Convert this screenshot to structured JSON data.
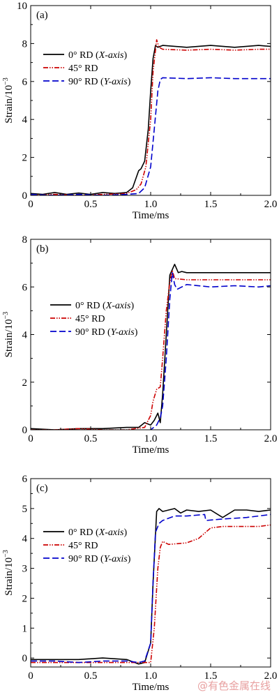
{
  "watermark": "@有色金属在线",
  "chart_data": [
    {
      "type": "line",
      "panel_label": "(a)",
      "xlabel": "Time/ms",
      "ylabel": "Strain/10",
      "ylabel_sup": "−3",
      "xlim": [
        0,
        2.0
      ],
      "ylim": [
        0,
        10
      ],
      "xticks": [
        0,
        0.5,
        1.0,
        1.5,
        2.0
      ],
      "xtick_labels": [
        "0",
        "0.5",
        "1.0",
        "1.5",
        "2.0"
      ],
      "yticks": [
        0,
        2,
        4,
        6,
        8,
        10
      ],
      "ytick_labels": [
        "0",
        "2",
        "4",
        "6",
        "8",
        "10"
      ],
      "legend_position": "upper-left",
      "series": [
        {
          "name": "0° RD (",
          "name_italic": "X-axis",
          "name_end": ")",
          "color": "#000000",
          "dash": "solid",
          "x": [
            0,
            0.1,
            0.2,
            0.3,
            0.4,
            0.5,
            0.6,
            0.7,
            0.8,
            0.85,
            0.9,
            0.92,
            0.95,
            0.98,
            1.0,
            1.02,
            1.04,
            1.06,
            1.1,
            1.3,
            1.5,
            1.7,
            1.9,
            2.0
          ],
          "y": [
            0.1,
            0.05,
            0.15,
            0.05,
            0.12,
            0.05,
            0.15,
            0.1,
            0.15,
            0.4,
            1.3,
            1.4,
            1.8,
            3.5,
            5.5,
            7.2,
            7.9,
            7.8,
            7.9,
            7.8,
            7.9,
            7.8,
            7.9,
            7.85
          ]
        },
        {
          "name": "45° RD",
          "color": "#cc0000",
          "dash": "dashdotdot",
          "x": [
            0,
            0.2,
            0.4,
            0.6,
            0.8,
            0.88,
            0.92,
            0.96,
            1.0,
            1.02,
            1.05,
            1.07,
            1.1,
            1.3,
            1.5,
            1.7,
            1.9,
            2.0
          ],
          "y": [
            0.0,
            0.05,
            0.0,
            0.05,
            0.1,
            0.3,
            0.6,
            1.5,
            4.0,
            6.5,
            8.2,
            7.8,
            7.7,
            7.65,
            7.7,
            7.65,
            7.7,
            7.7
          ],
          "legend": true
        },
        {
          "name": "90° RD (",
          "name_italic": "Y-axis",
          "name_end": ")",
          "color": "#0000cc",
          "dash": "longdash",
          "x": [
            0,
            0.2,
            0.4,
            0.6,
            0.8,
            0.9,
            0.95,
            1.0,
            1.03,
            1.06,
            1.08,
            1.1,
            1.3,
            1.5,
            1.7,
            1.9,
            2.0
          ],
          "y": [
            0.05,
            0.0,
            0.05,
            0.0,
            0.05,
            0.1,
            0.4,
            1.5,
            3.5,
            5.5,
            6.1,
            6.2,
            6.15,
            6.2,
            6.15,
            6.15,
            6.15
          ]
        }
      ]
    },
    {
      "type": "line",
      "panel_label": "(b)",
      "xlabel": "Time/ms",
      "ylabel": "Strain/10",
      "ylabel_sup": "−3",
      "xlim": [
        0,
        2.0
      ],
      "ylim": [
        0,
        8
      ],
      "xticks": [
        0,
        0.5,
        1.0,
        1.5,
        2.0
      ],
      "xtick_labels": [
        "0",
        "0.5",
        "1.0",
        "1.5",
        "2.0"
      ],
      "yticks": [
        0,
        2,
        4,
        6,
        8
      ],
      "ytick_labels": [
        "0",
        "2",
        "4",
        "6",
        "8"
      ],
      "legend_position": "middle-left",
      "series": [
        {
          "name": "0° RD (",
          "name_italic": "X-axis",
          "name_end": ")",
          "color": "#000000",
          "dash": "solid",
          "x": [
            0,
            0.2,
            0.4,
            0.6,
            0.8,
            0.9,
            0.95,
            1.0,
            1.03,
            1.06,
            1.08,
            1.1,
            1.13,
            1.16,
            1.2,
            1.23,
            1.26,
            1.3,
            1.5,
            1.7,
            1.9,
            2.0
          ],
          "y": [
            0.05,
            0.0,
            0.05,
            0.05,
            0.1,
            0.1,
            0.3,
            0.2,
            0.4,
            0.7,
            0.3,
            1.5,
            4.0,
            6.5,
            6.95,
            6.6,
            6.65,
            6.6,
            6.6,
            6.6,
            6.6,
            6.6
          ]
        },
        {
          "name": "45° RD",
          "color": "#cc0000",
          "dash": "dashdotdot",
          "x": [
            0,
            0.2,
            0.4,
            0.6,
            0.8,
            0.95,
            1.0,
            1.02,
            1.05,
            1.08,
            1.1,
            1.13,
            1.16,
            1.18,
            1.2,
            1.3,
            1.5,
            1.7,
            1.9,
            2.0
          ],
          "y": [
            0.0,
            0.0,
            0.05,
            0.0,
            0.0,
            0.1,
            0.6,
            1.2,
            1.7,
            1.8,
            3.0,
            5.0,
            6.2,
            6.7,
            6.35,
            6.3,
            6.3,
            6.3,
            6.3,
            6.3
          ]
        },
        {
          "name": "90° RD (",
          "name_italic": "Y-axis",
          "name_end": ")",
          "color": "#0000cc",
          "dash": "longdash",
          "x": [
            0,
            0.2,
            0.4,
            0.6,
            0.8,
            0.95,
            1.0,
            1.05,
            1.08,
            1.1,
            1.13,
            1.16,
            1.18,
            1.2,
            1.22,
            1.3,
            1.5,
            1.7,
            1.9,
            2.0
          ],
          "y": [
            -0.1,
            -0.05,
            -0.1,
            -0.05,
            -0.05,
            -0.05,
            0.0,
            0.2,
            0.5,
            1.0,
            3.0,
            5.5,
            6.6,
            6.1,
            5.9,
            6.1,
            6.0,
            6.05,
            6.0,
            6.05
          ]
        }
      ]
    },
    {
      "type": "line",
      "panel_label": "(c)",
      "xlabel": "Time/ms",
      "ylabel": "Strain/10",
      "ylabel_sup": "−3",
      "xlim": [
        0,
        2.0
      ],
      "ylim": [
        -0.3,
        6
      ],
      "xticks": [
        0,
        0.5,
        1.0,
        1.5,
        2.0
      ],
      "xtick_labels": [
        "0",
        "0.5",
        "1.0",
        "1.5",
        "2.0"
      ],
      "yticks": [
        0,
        1,
        2,
        3,
        4,
        5,
        6
      ],
      "ytick_labels": [
        "0",
        "1",
        "2",
        "3",
        "4",
        "5",
        "6"
      ],
      "legend_position": "upper-left",
      "series": [
        {
          "name": "0° RD (",
          "name_italic": "X-axis",
          "name_end": ")",
          "color": "#000000",
          "dash": "solid",
          "x": [
            0,
            0.2,
            0.4,
            0.6,
            0.8,
            0.9,
            0.95,
            1.0,
            1.02,
            1.05,
            1.07,
            1.1,
            1.2,
            1.25,
            1.3,
            1.4,
            1.5,
            1.6,
            1.7,
            1.8,
            1.9,
            2.0
          ],
          "y": [
            -0.05,
            -0.05,
            -0.05,
            0.0,
            -0.05,
            -0.2,
            -0.15,
            0.5,
            2.5,
            4.9,
            5.0,
            4.9,
            5.0,
            4.85,
            4.95,
            4.9,
            4.95,
            4.7,
            4.95,
            4.95,
            4.9,
            4.95
          ]
        },
        {
          "name": "45° RD",
          "color": "#cc0000",
          "dash": "dashdotdot",
          "x": [
            0,
            0.2,
            0.4,
            0.6,
            0.8,
            0.95,
            1.0,
            1.03,
            1.06,
            1.08,
            1.1,
            1.15,
            1.3,
            1.4,
            1.5,
            1.6,
            1.7,
            1.8,
            1.9,
            2.0
          ],
          "y": [
            -0.15,
            -0.15,
            -0.15,
            -0.15,
            -0.15,
            -0.15,
            -0.15,
            1.0,
            3.0,
            3.7,
            3.9,
            3.8,
            3.85,
            4.0,
            4.35,
            4.4,
            4.4,
            4.4,
            4.4,
            4.45
          ]
        },
        {
          "name": "90° RD (",
          "name_italic": "Y-axis",
          "name_end": ")",
          "color": "#0000cc",
          "dash": "longdash",
          "x": [
            0,
            0.2,
            0.4,
            0.6,
            0.8,
            0.9,
            0.95,
            1.0,
            1.02,
            1.04,
            1.07,
            1.1,
            1.2,
            1.3,
            1.45,
            1.46,
            1.6,
            1.8,
            2.0
          ],
          "y": [
            -0.1,
            -0.1,
            -0.15,
            -0.1,
            -0.1,
            -0.15,
            -0.1,
            0.5,
            2.5,
            4.2,
            4.5,
            4.6,
            4.75,
            4.75,
            4.8,
            4.6,
            4.65,
            4.7,
            4.8
          ]
        }
      ]
    }
  ]
}
